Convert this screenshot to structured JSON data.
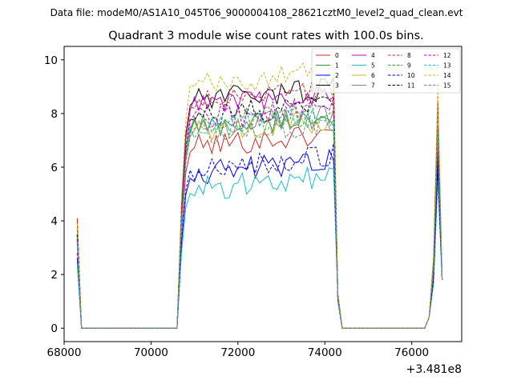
{
  "figure": {
    "header": "Data file: modeM0/AS1A10_045T06_9000004108_28621cztM0_level2_quad_clean.evt",
    "offset_label": "+3.481e8"
  },
  "chart_data": {
    "type": "line",
    "title": "Quadrant 3 module wise count rates with 100.0s bins.",
    "xlabel": "",
    "ylabel": "",
    "x_offset": 348100000,
    "xlim": [
      68000,
      77150
    ],
    "ylim": [
      -0.5,
      10.5
    ],
    "x_ticks": [
      68000,
      70000,
      72000,
      74000,
      76000
    ],
    "y_ticks": [
      0,
      2,
      4,
      6,
      8,
      10
    ],
    "grid": false,
    "legend": {
      "placement": "top-right",
      "columns": 4
    },
    "series": [
      {
        "name": "0",
        "color": "#d62728",
        "dash": "solid",
        "level": 7.0,
        "spike": 4.1,
        "ing": 7.5
      },
      {
        "name": "1",
        "color": "#2ca02c",
        "dash": "solid",
        "level": 7.7,
        "spike": 3.7,
        "ing": 6.5
      },
      {
        "name": "2",
        "color": "#0000ff",
        "dash": "solid",
        "level": 6.0,
        "spike": 2.6,
        "ing": 5.8
      },
      {
        "name": "3",
        "color": "#000000",
        "dash": "solid",
        "level": 8.7,
        "spike": 3.3,
        "ing": 6.3
      },
      {
        "name": "4",
        "color": "#c000c0",
        "dash": "solid",
        "level": 8.5,
        "spike": 3.5,
        "ing": 6.8
      },
      {
        "name": "5",
        "color": "#17becf",
        "dash": "solid",
        "level": 5.4,
        "spike": 2.4,
        "ing": 5.5
      },
      {
        "name": "6",
        "color": "#bcbd22",
        "dash": "solid",
        "level": 7.5,
        "spike": 3.4,
        "ing": 8.3
      },
      {
        "name": "7",
        "color": "#7f7f7f",
        "dash": "solid",
        "level": 7.7,
        "spike": 3.2,
        "ing": 7.0
      },
      {
        "name": "8",
        "color": "#d62728",
        "dash": "dashed",
        "level": 8.6,
        "spike": 4.0,
        "ing": 8.5
      },
      {
        "name": "9",
        "color": "#2ca02c",
        "dash": "dashed",
        "level": 7.8,
        "spike": 3.4,
        "ing": 7.2
      },
      {
        "name": "10",
        "color": "#0000ff",
        "dash": "dashed",
        "level": 6.2,
        "spike": 2.8,
        "ing": 6.0
      },
      {
        "name": "11",
        "color": "#000000",
        "dash": "dashed",
        "level": 8.1,
        "spike": 3.5,
        "ing": 6.6
      },
      {
        "name": "12",
        "color": "#c000c0",
        "dash": "dashed",
        "level": 8.0,
        "spike": 3.3,
        "ing": 7.0
      },
      {
        "name": "13",
        "color": "#17becf",
        "dash": "dashed",
        "level": 7.7,
        "spike": 3.2,
        "ing": 7.3
      },
      {
        "name": "14",
        "color": "#bcbd22",
        "dash": "dashed",
        "level": 9.3,
        "spike": 3.9,
        "ing": 9.0
      },
      {
        "name": "15",
        "color": "#7f7f7f",
        "dash": "dashed",
        "level": 7.4,
        "spike": 3.1,
        "ing": 7.4
      }
    ]
  }
}
